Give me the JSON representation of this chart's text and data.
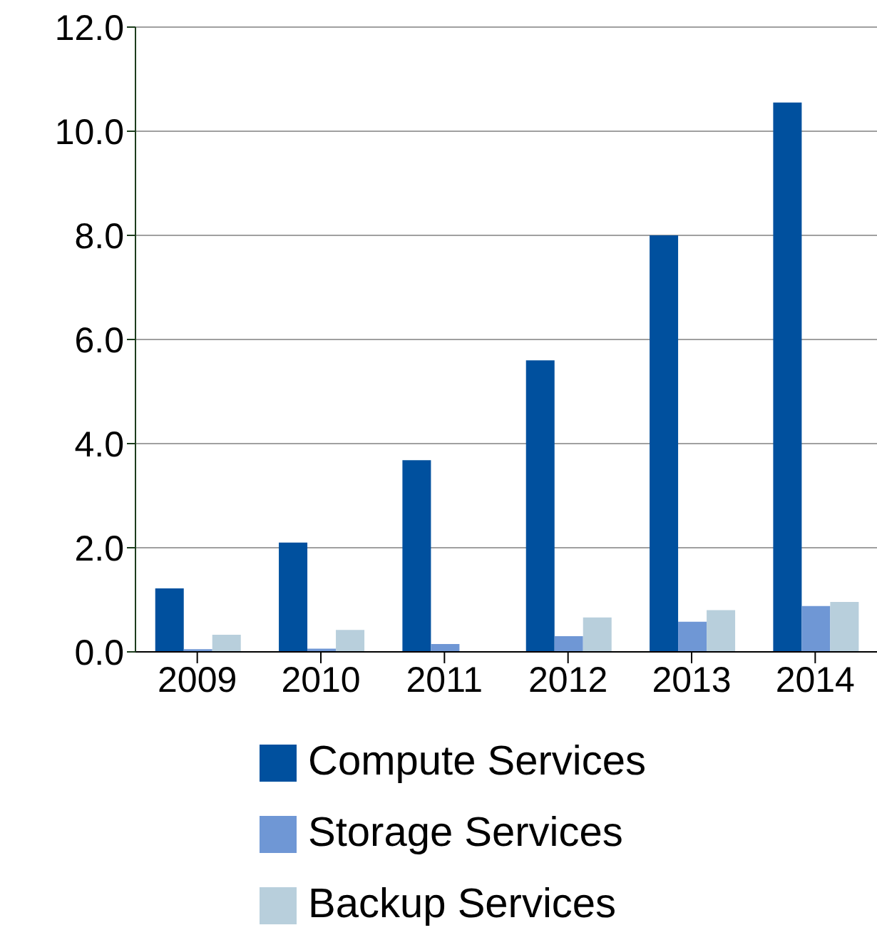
{
  "chart_data": {
    "type": "bar",
    "categories": [
      "2009",
      "2010",
      "2011",
      "2012",
      "2013",
      "2014"
    ],
    "series": [
      {
        "name": "Compute Services",
        "color": "#00509e",
        "values": [
          1.22,
          2.1,
          3.68,
          5.6,
          8.0,
          10.55
        ]
      },
      {
        "name": "Storage Services",
        "color": "#6f97d5",
        "values": [
          0.05,
          0.06,
          0.15,
          0.3,
          0.58,
          0.88
        ]
      },
      {
        "name": "Backup Services",
        "color": "#b8cfdc",
        "values": [
          0.33,
          0.42,
          null,
          0.66,
          0.8,
          0.96
        ]
      }
    ],
    "ylim": [
      0,
      12
    ],
    "yticks": [
      {
        "value": 0,
        "label": "0.0"
      },
      {
        "value": 2,
        "label": "2.0"
      },
      {
        "value": 4,
        "label": "4.0"
      },
      {
        "value": 6,
        "label": "6.0"
      },
      {
        "value": 8,
        "label": "8.0"
      },
      {
        "value": 10,
        "label": "10.0"
      },
      {
        "value": 12,
        "label": "12.0"
      }
    ],
    "grid": "y",
    "legend": "bottom"
  }
}
